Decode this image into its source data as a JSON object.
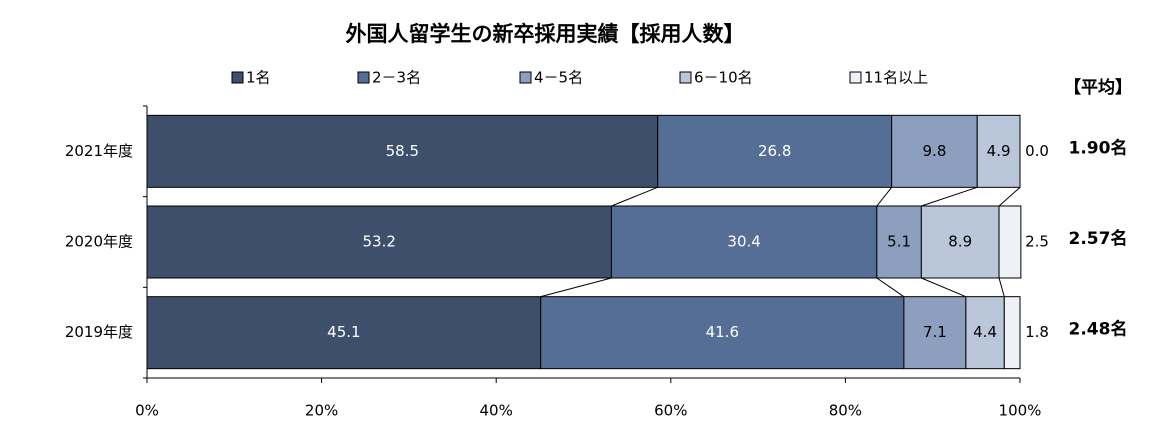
{
  "chart_data": {
    "type": "stacked-bar-horizontal",
    "title": "外国人留学生の新卒採用実績【採用人数】",
    "categories": [
      "2021年度",
      "2020年度",
      "2019年度"
    ],
    "series": [
      {
        "name": "1名",
        "color": "#3d4f6b",
        "values": [
          58.5,
          53.2,
          45.1
        ]
      },
      {
        "name": "2－3名",
        "color": "#546e96",
        "values": [
          26.8,
          30.4,
          41.6
        ]
      },
      {
        "name": "4－5名",
        "color": "#8c9fbf",
        "values": [
          9.8,
          5.1,
          7.1
        ]
      },
      {
        "name": "6－10名",
        "color": "#bac6d9",
        "values": [
          4.9,
          8.9,
          4.4
        ]
      },
      {
        "name": "11名以上",
        "color": "#eef1f6",
        "values": [
          0,
          2.5,
          1.8
        ],
        "value_labels": [
          "0.0",
          "2.5",
          "1.8"
        ]
      }
    ],
    "xlim": [
      0,
      100
    ],
    "xticks": [
      {
        "value": 0,
        "label": "0%"
      },
      {
        "value": 20,
        "label": "20%"
      },
      {
        "value": 40,
        "label": "40%"
      },
      {
        "value": 60,
        "label": "60%"
      },
      {
        "value": 80,
        "label": "80%"
      },
      {
        "value": 100,
        "label": "100%"
      }
    ],
    "average_title": "【平均】",
    "averages": [
      "1.90名",
      "2.57名",
      "2.48名"
    ]
  }
}
